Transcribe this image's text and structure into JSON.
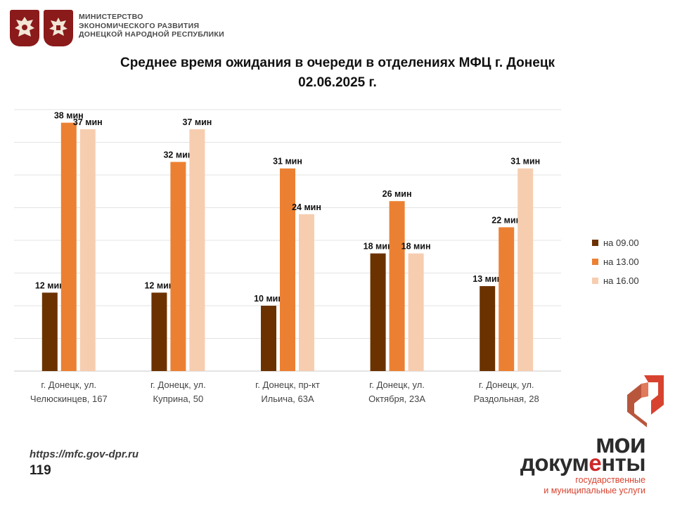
{
  "header": {
    "ministry_lines": [
      "МИНИСТЕРСТВО",
      "ЭКОНОМИЧЕСКОГО РАЗВИТИЯ",
      "ДОНЕЦКОЙ НАРОДНОЙ РЕСПУБЛИКИ"
    ],
    "emblem_icons": [
      "russia-eagle-icon",
      "dpr-eagle-icon"
    ],
    "emblem_color": "#8b1a1a"
  },
  "chart_data": {
    "type": "bar",
    "title_line1": "Среднее время ожидания в очереди в отделениях МФЦ г. Донецк",
    "title_line2": "02.06.2025 г.",
    "xlabel": "",
    "ylabel": "",
    "ylim": [
      0,
      40
    ],
    "grid": true,
    "legend_position": "right",
    "categories": [
      [
        "г. Донецк, ул.",
        "Челюскинцев, 167"
      ],
      [
        "г. Донецк, ул.",
        "Куприна, 50"
      ],
      [
        "г. Донецк, пр-кт",
        "Ильича, 63А"
      ],
      [
        "г. Донецк, ул.",
        "Октября, 23А"
      ],
      [
        "г. Донецк, ул.",
        "Раздольная, 28"
      ]
    ],
    "series": [
      {
        "name": "на 09.00",
        "color": "#6b3200",
        "values": [
          12,
          12,
          10,
          18,
          13
        ]
      },
      {
        "name": "на 13.00",
        "color": "#ec8032",
        "values": [
          38,
          32,
          31,
          26,
          22
        ]
      },
      {
        "name": "на 16.00",
        "color": "#f7cdb0",
        "values": [
          37,
          37,
          24,
          18,
          31
        ]
      }
    ],
    "value_suffix": " мин"
  },
  "footer": {
    "url": "https://mfc.gov-dpr.ru",
    "page_number": "119"
  },
  "brand": {
    "line1": "мои",
    "line2_part1": "докум",
    "line2_part2": "е",
    "line2_part3": "нты",
    "sub_lines": [
      "государственные",
      "и муниципальные услуги"
    ],
    "mark_icon": "moi-dokumenty-logo-icon",
    "colors": {
      "red": "#cc2a2a",
      "dark": "#2b2b2b",
      "orange": "#d7432f"
    }
  }
}
